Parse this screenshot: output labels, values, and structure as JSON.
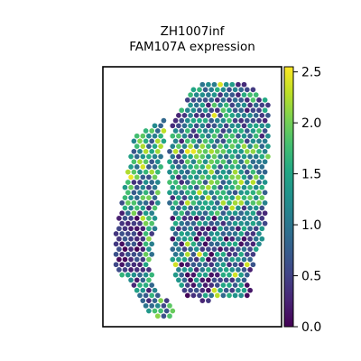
{
  "chart_data": {
    "type": "scatter",
    "title_line1": "ZH1007inf",
    "title_line2": "FAM107A expression",
    "xlabel": "",
    "ylabel": "",
    "axes_ticks": false,
    "grid": false,
    "colormap": "viridis",
    "colorbar": {
      "min": 0.0,
      "max": 2.55,
      "ticks": [
        0.0,
        0.5,
        1.0,
        1.5,
        2.0,
        2.5
      ],
      "tick_labels": [
        "0.0",
        "0.5",
        "1.0",
        "1.5",
        "2.0",
        "2.5"
      ],
      "placement": "right"
    },
    "spots": {
      "shape": "hexagonal",
      "tissue": "two tissue regions: a narrow left strip and a larger right region",
      "value_range": [
        0.0,
        2.55
      ],
      "typical_value": 1.0
    }
  }
}
